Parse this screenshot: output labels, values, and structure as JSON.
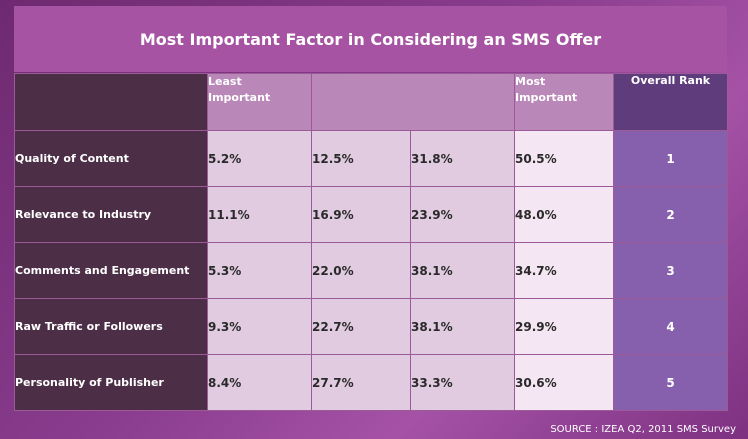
{
  "title": "Most Important Factor in Considering an SMS Offer",
  "columns": {
    "least": [
      "Least",
      "Important"
    ],
    "most": [
      "Most",
      "Important"
    ],
    "rank": "Overall Rank"
  },
  "source": "SOURCE : IZEA Q2, 2011 SMS Survey",
  "colors": {
    "title_bar": "#a553a2",
    "factor_col": "#4c2f47",
    "header": "#b987b8",
    "cell": "#e0cbe0",
    "most_cell": "#f4e6f2",
    "rank_header": "#5f3d7c",
    "rank_cell": "#8660ad"
  },
  "chart_data": {
    "type": "table",
    "title": "Most Important Factor in Considering an SMS Offer",
    "scale": [
      "Least Important",
      "",
      "",
      "Most Important"
    ],
    "rows": [
      {
        "factor": "Quality of Content",
        "values": [
          "5.2%",
          "12.5%",
          "31.8%",
          "50.5%"
        ],
        "rank": "1"
      },
      {
        "factor": "Relevance to Industry",
        "values": [
          "11.1%",
          "16.9%",
          "23.9%",
          "48.0%"
        ],
        "rank": "2"
      },
      {
        "factor": "Comments and Engagement",
        "values": [
          "5.3%",
          "22.0%",
          "38.1%",
          "34.7%"
        ],
        "rank": "3"
      },
      {
        "factor": "Raw Traffic or Followers",
        "values": [
          "9.3%",
          "22.7%",
          "38.1%",
          "29.9%"
        ],
        "rank": "4"
      },
      {
        "factor": "Personality of Publisher",
        "values": [
          "8.4%",
          "27.7%",
          "33.3%",
          "30.6%"
        ],
        "rank": "5"
      }
    ]
  }
}
